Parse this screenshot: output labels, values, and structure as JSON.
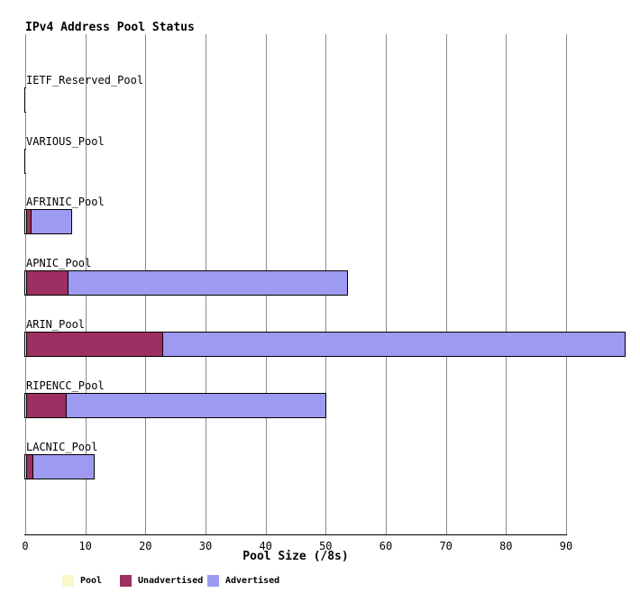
{
  "title": "IPv4 Address Pool Status",
  "colors": {
    "pool": "#faf7cd",
    "unadvertised": "#9d2f62",
    "advertised": "#9e9af2",
    "gridline": "#8c8c8c",
    "axis": "#000000",
    "background": "#ffffff"
  },
  "chart_data": {
    "type": "bar",
    "orientation": "horizontal",
    "title": "IPv4 Address Pool Status",
    "xlabel": "Pool Size (/8s)",
    "xlim": [
      0,
      100
    ],
    "xticks": [
      0,
      10,
      20,
      30,
      40,
      50,
      60,
      70,
      80,
      90
    ],
    "grid": "vertical",
    "legend_position": "bottom",
    "legend": [
      {
        "label": "Pool",
        "color": "#faf7cd"
      },
      {
        "label": "Unadvertised",
        "color": "#9d2f62"
      },
      {
        "label": "Advertised",
        "color": "#9e9af2"
      }
    ],
    "categories": [
      "IETF_Reserved_Pool",
      "VARIOUS_Pool",
      "AFRINIC_Pool",
      "APNIC_Pool",
      "ARIN_Pool",
      "RIPENCC_Pool",
      "LACNIC_Pool"
    ],
    "series": [
      {
        "name": "Pool",
        "values": [
          0.05,
          0.05,
          0.1,
          0.1,
          0.2,
          0.1,
          0.1
        ]
      },
      {
        "name": "Unadvertised",
        "values": [
          0,
          0,
          0.7,
          6.8,
          22.4,
          6.5,
          0.9
        ]
      },
      {
        "name": "Advertised",
        "values": [
          0,
          0,
          6.5,
          46.4,
          76.8,
          43.0,
          10.1
        ]
      }
    ],
    "totals": [
      0.05,
      0.05,
      7.3,
      53.3,
      99.4,
      49.6,
      11.1
    ]
  }
}
